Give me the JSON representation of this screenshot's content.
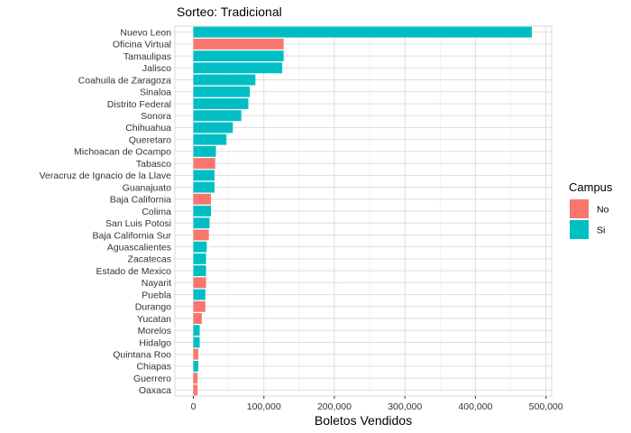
{
  "chart_data": {
    "type": "bar",
    "orientation": "horizontal",
    "title": "Sorteo: Tradicional",
    "xlabel": "Boletos Vendidos",
    "ylabel": "",
    "xlim": [
      0,
      500000
    ],
    "x_ticks": [
      0,
      100000,
      200000,
      300000,
      400000,
      500000
    ],
    "x_tick_labels": [
      "0",
      "100,000",
      "200,000",
      "300,000",
      "400,000",
      "500,000"
    ],
    "grid": true,
    "legend": {
      "title": "Campus",
      "placement": "right",
      "entries": [
        {
          "key": "No",
          "label": "No",
          "color": "#F8766D"
        },
        {
          "key": "Si",
          "label": "Si",
          "color": "#00BFC4"
        }
      ]
    },
    "categories": [
      "Nuevo Leon",
      "Oficina Virtual",
      "Tamaulipas",
      "Jalisco",
      "Coahuila de Zaragoza",
      "Sinaloa",
      "Distrito Federal",
      "Sonora",
      "Chihuahua",
      "Queretaro",
      "Michoacan de Ocampo",
      "Tabasco",
      "Veracruz de Ignacio de la Llave",
      "Guanajuato",
      "Baja California",
      "Colima",
      "San Luis Potosi",
      "Baja California Sur",
      "Aguascalientes",
      "Zacatecas",
      "Estado de Mexico",
      "Nayarit",
      "Puebla",
      "Durango",
      "Yucatan",
      "Morelos",
      "Hidalgo",
      "Quintana Roo",
      "Chiapas",
      "Guerrero",
      "Oaxaca"
    ],
    "values": [
      480000,
      128000,
      128000,
      126000,
      88000,
      80000,
      78000,
      68000,
      56000,
      47000,
      32000,
      31000,
      30000,
      30000,
      25000,
      25000,
      23000,
      22000,
      19000,
      18000,
      18000,
      18000,
      17000,
      17000,
      12000,
      9000,
      9000,
      7000,
      7000,
      6000,
      6000
    ],
    "campus": [
      "Si",
      "No",
      "Si",
      "Si",
      "Si",
      "Si",
      "Si",
      "Si",
      "Si",
      "Si",
      "Si",
      "No",
      "Si",
      "Si",
      "No",
      "Si",
      "Si",
      "No",
      "Si",
      "Si",
      "Si",
      "No",
      "Si",
      "No",
      "No",
      "Si",
      "Si",
      "No",
      "Si",
      "No",
      "No"
    ]
  }
}
